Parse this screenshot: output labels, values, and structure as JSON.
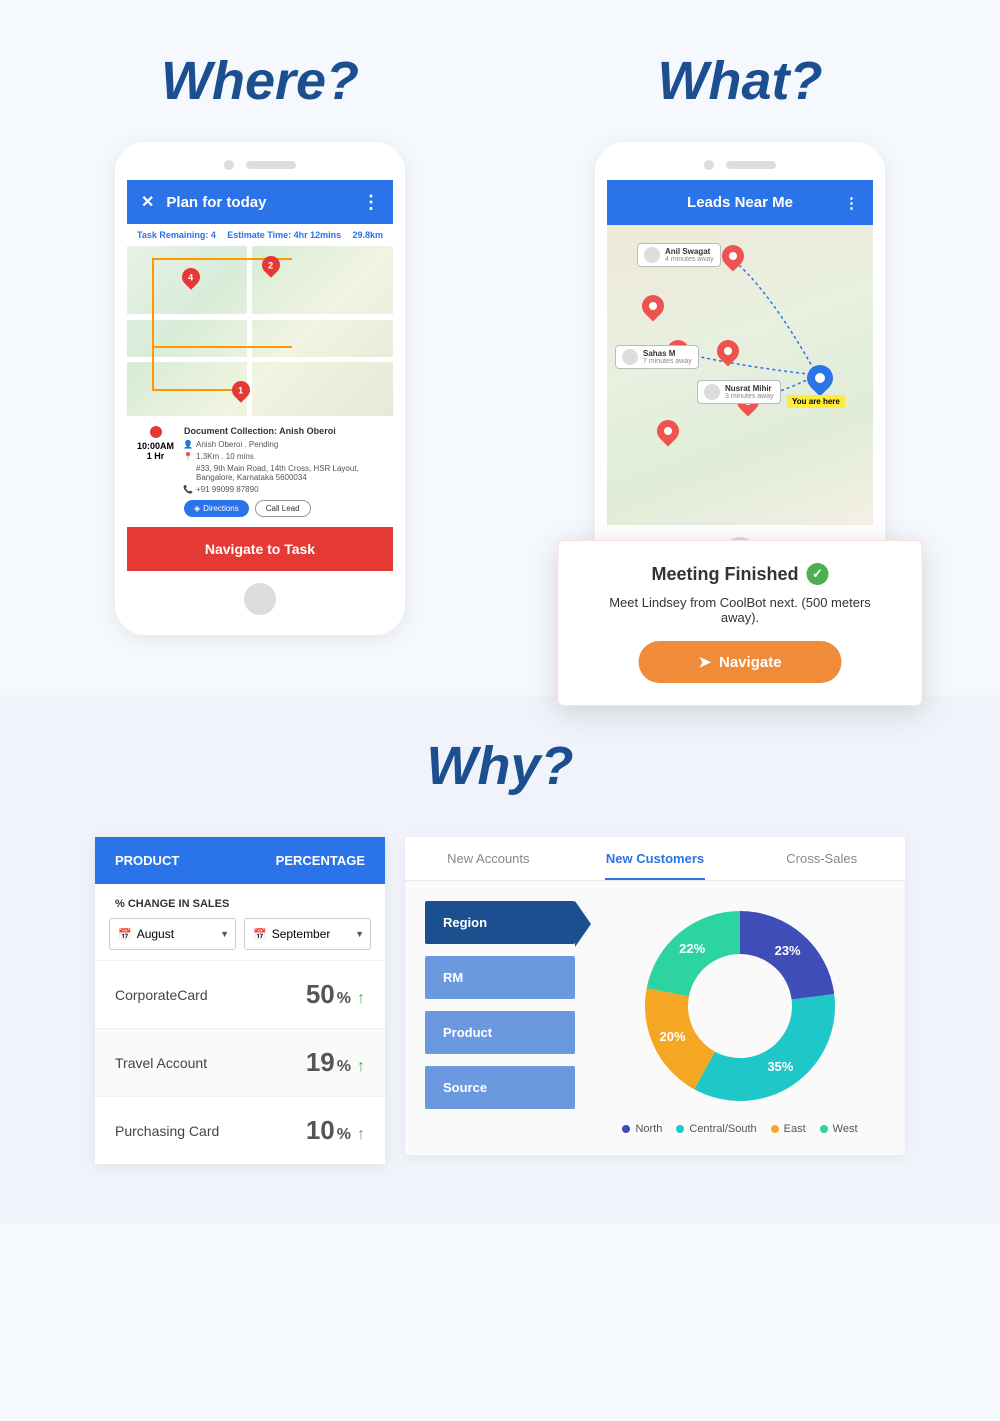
{
  "headings": {
    "where": "Where?",
    "what": "What?",
    "why": "Why?"
  },
  "colors": {
    "primary_blue": "#2b73e8",
    "dark_blue": "#1b4f8f",
    "red": "#e53935",
    "orange": "#f08b3a",
    "green": "#4caf50",
    "light_blue_btn": "#6a99e0",
    "donut_north": "#3f4db8",
    "donut_central": "#1fc8c8",
    "donut_east": "#f5a623",
    "donut_west": "#2bd4a0"
  },
  "phone1": {
    "title": "Plan for today",
    "task_remaining": "Task Remaining: 4",
    "estimate": "Estimate Time: 4hr 12mins",
    "distance": "29.8km",
    "pins": [
      "4",
      "2",
      "1"
    ],
    "task": {
      "time": "10:00AM",
      "duration": "1 Hr",
      "title": "Document Collection: Anish Oberoi",
      "person": "Anish Oberoi . Pending",
      "distance": "1.3Km . 10 mins",
      "address": "#33, 9th Main Road, 14th Cross, HSR Layout, Bangalore, Karnataka 5600034",
      "phone": "+91 99099 87890",
      "btn_directions": "Directions",
      "btn_call": "Call Lead"
    },
    "nav_button": "Navigate to Task"
  },
  "phone2": {
    "title": "Leads Near Me",
    "leads": [
      {
        "name": "Anil Swagat",
        "sub": "4 minutes away"
      },
      {
        "name": "Sahas M",
        "sub": "7 minutes away"
      },
      {
        "name": "Nusrat Mihir",
        "sub": "3 minutes away"
      }
    ],
    "you_label": "You are here"
  },
  "meeting": {
    "title": "Meeting Finished",
    "sub": "Meet Lindsey from CoolBot next. (500 meters away).",
    "button": "Navigate"
  },
  "product_table": {
    "col1": "PRODUCT",
    "col2": "PERCENTAGE",
    "subtitle": "% CHANGE IN SALES",
    "month1": "August",
    "month2": "September",
    "rows": [
      {
        "name": "CorporateCard",
        "value": "50"
      },
      {
        "name": "Travel Account",
        "value": "19"
      },
      {
        "name": "Purchasing Card",
        "value": "10"
      }
    ]
  },
  "analytics": {
    "tabs": [
      "New Accounts",
      "New Customers",
      "Cross-Sales"
    ],
    "active_tab": 1,
    "filters": [
      "Region",
      "RM",
      "Product",
      "Source"
    ],
    "active_filter": 0,
    "donut": {
      "slices": [
        {
          "label": "North",
          "value": 23,
          "color": "#3f4db8"
        },
        {
          "label": "Central/South",
          "value": 35,
          "color": "#1fc8c8"
        },
        {
          "label": "East",
          "value": 20,
          "color": "#f5a623"
        },
        {
          "label": "West",
          "value": 22,
          "color": "#2bd4a0"
        }
      ],
      "inner_radius_pct": 55
    }
  }
}
